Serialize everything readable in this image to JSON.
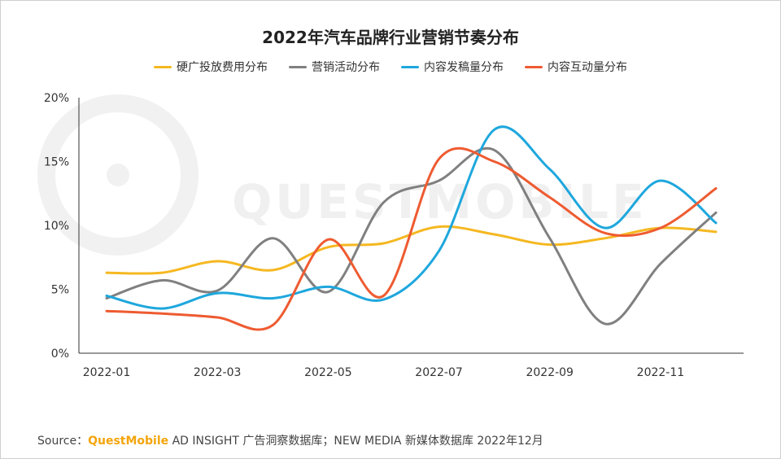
{
  "header": {
    "title": "2022年汽车品牌行业营销节奏分布"
  },
  "watermark": {
    "text": "QUESTMOBILE"
  },
  "source": {
    "prefix": "Source：",
    "brand": "QuestMobile",
    "rest": " AD INSIGHT 广告洞察数据库；NEW MEDIA 新媒体数据库 2022年12月"
  },
  "chart_data": {
    "type": "line",
    "title": "2022年汽车品牌行业营销节奏分布",
    "xlabel": "",
    "ylabel": "",
    "x": [
      "2022-01",
      "2022-02",
      "2022-03",
      "2022-04",
      "2022-05",
      "2022-06",
      "2022-07",
      "2022-08",
      "2022-09",
      "2022-10",
      "2022-11",
      "2022-12"
    ],
    "x_tick_labels": [
      "2022-01",
      "2022-03",
      "2022-05",
      "2022-07",
      "2022-09",
      "2022-11"
    ],
    "ylim": [
      0,
      20
    ],
    "y_ticks": [
      0,
      5,
      10,
      15,
      20
    ],
    "y_tick_labels": [
      "0%",
      "5%",
      "10%",
      "15%",
      "20%"
    ],
    "grid": false,
    "legend": "top-center",
    "series": [
      {
        "name": "硬广投放费用分布",
        "color": "#f5b821",
        "values": [
          6.3,
          6.3,
          7.2,
          6.5,
          8.3,
          8.6,
          9.9,
          9.3,
          8.5,
          9.0,
          9.8,
          9.5
        ]
      },
      {
        "name": "营销活动分布",
        "color": "#808080",
        "values": [
          4.3,
          5.7,
          4.9,
          9.0,
          4.8,
          11.8,
          13.5,
          15.9,
          9.0,
          2.3,
          7.0,
          11.0
        ]
      },
      {
        "name": "内容发稿量分布",
        "color": "#1ea7dd",
        "values": [
          4.5,
          3.5,
          4.7,
          4.3,
          5.2,
          4.2,
          8.0,
          17.5,
          14.4,
          9.8,
          13.5,
          10.2
        ]
      },
      {
        "name": "内容互动量分布",
        "color": "#ee5b31",
        "values": [
          3.3,
          3.1,
          2.8,
          2.2,
          8.9,
          4.5,
          15.2,
          15.0,
          12.2,
          9.4,
          9.8,
          12.9
        ]
      }
    ]
  }
}
